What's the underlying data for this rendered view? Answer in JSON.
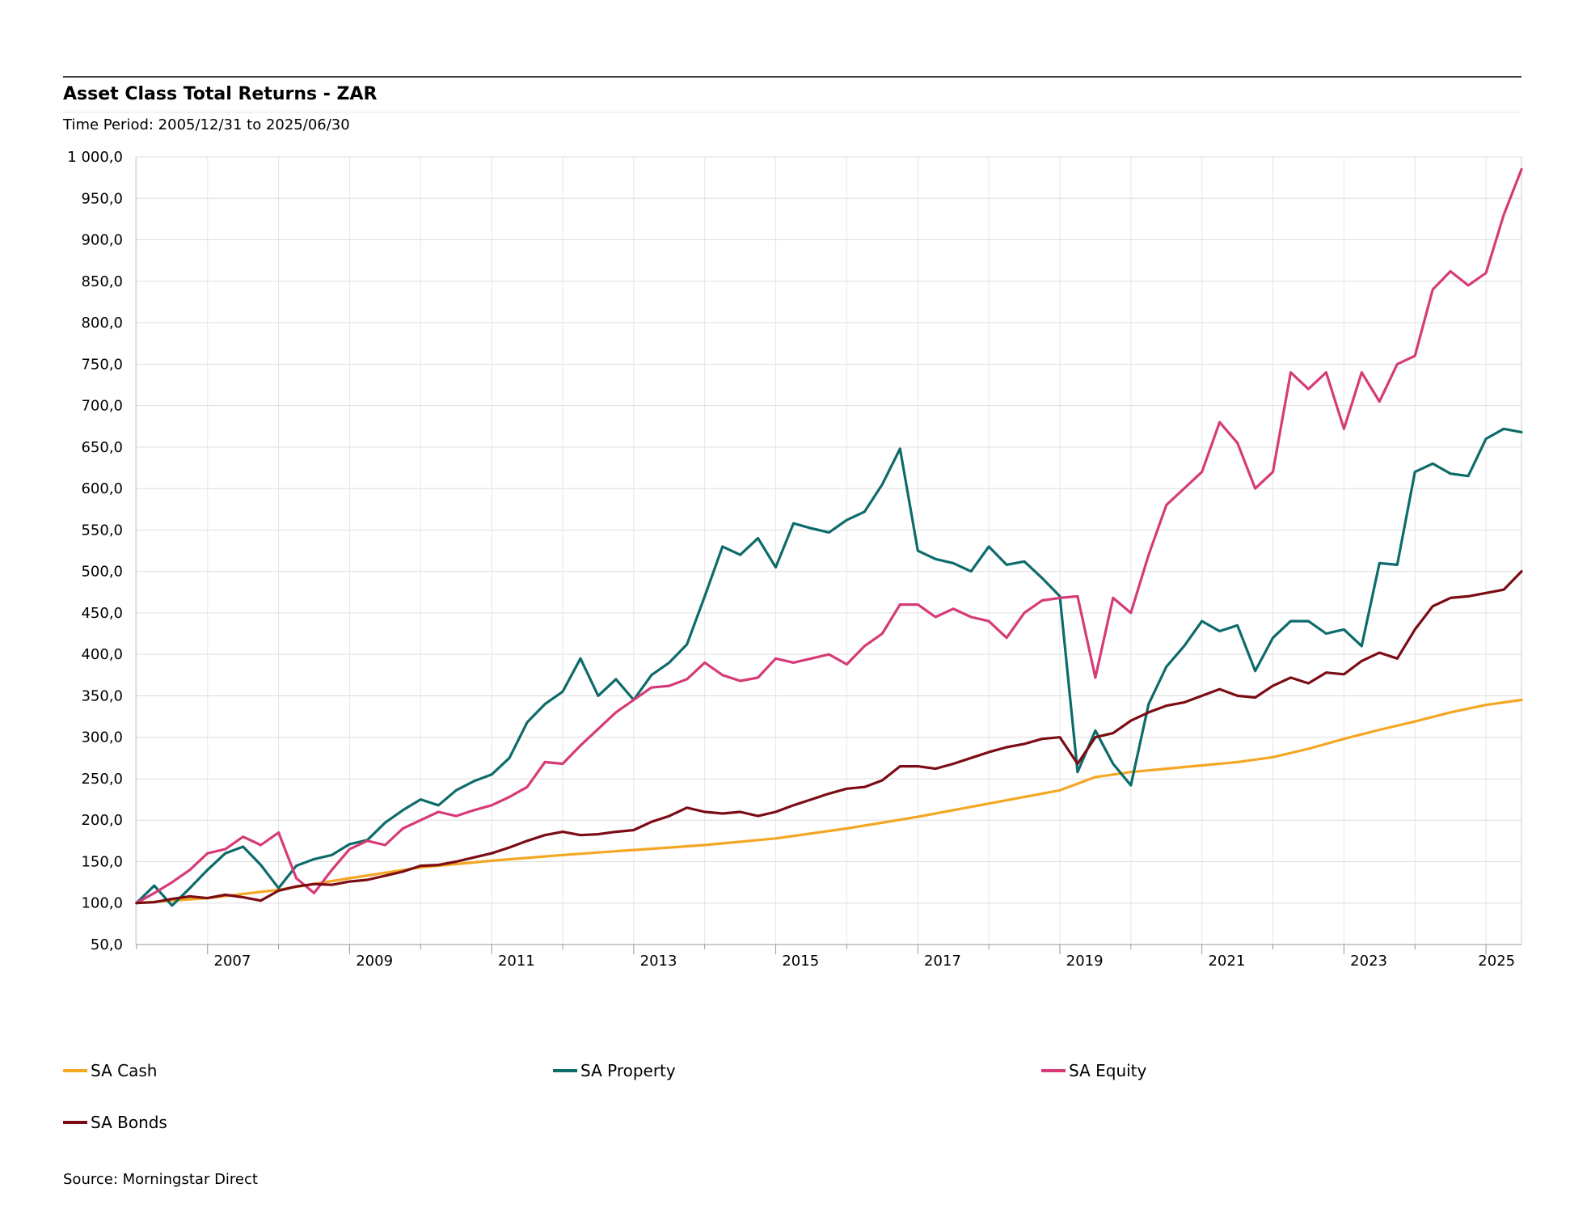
{
  "chart_data": {
    "type": "line",
    "title": "Asset Class Total Returns - ZAR",
    "subtitle": "Time Period: 2005/12/31 to 2025/06/30",
    "ylim": [
      50,
      1000
    ],
    "yticks": [
      "1 000,0",
      "950,0",
      "900,0",
      "850,0",
      "800,0",
      "750,0",
      "700,0",
      "650,0",
      "600,0",
      "550,0",
      "500,0",
      "450,0",
      "400,0",
      "350,0",
      "300,0",
      "250,0",
      "200,0",
      "150,0",
      "100,0",
      "50,0"
    ],
    "ytick_values": [
      1000,
      950,
      900,
      850,
      800,
      750,
      700,
      650,
      600,
      550,
      500,
      450,
      400,
      350,
      300,
      250,
      200,
      150,
      100,
      50
    ],
    "xlim": [
      2005.99,
      2025.5
    ],
    "xticks": [
      "2007",
      "2009",
      "2011",
      "2013",
      "2015",
      "2017",
      "2019",
      "2021",
      "2023",
      "2025"
    ],
    "xtick_values": [
      2007.6,
      2009.6,
      2011.6,
      2013.6,
      2015.6,
      2017.6,
      2019.6,
      2021.6,
      2023.6,
      2025.4
    ],
    "grid": true,
    "legend_position": "bottom",
    "series": [
      {
        "name": "SA Cash",
        "color": "#f5a623",
        "x": [
          2006.0,
          2007.0,
          2008.0,
          2009.0,
          2010.0,
          2011.0,
          2012.0,
          2013.0,
          2014.0,
          2015.0,
          2016.0,
          2017.0,
          2018.0,
          2019.0,
          2019.5,
          2020.0,
          2020.5,
          2021.0,
          2021.5,
          2022.0,
          2022.5,
          2023.0,
          2023.5,
          2024.0,
          2024.5,
          2025.0,
          2025.5
        ],
        "values": [
          100,
          106,
          116,
          130,
          143,
          151,
          158,
          164,
          170,
          178,
          190,
          204,
          220,
          236,
          252,
          258,
          262,
          266,
          270,
          276,
          286,
          298,
          309,
          319,
          330,
          339,
          345
        ]
      },
      {
        "name": "SA Property",
        "color": "#0e6b6b",
        "x": [
          2006.0,
          2006.25,
          2006.5,
          2006.75,
          2007.0,
          2007.25,
          2007.5,
          2007.75,
          2008.0,
          2008.25,
          2008.5,
          2008.75,
          2009.0,
          2009.25,
          2009.5,
          2009.75,
          2010.0,
          2010.25,
          2010.5,
          2010.75,
          2011.0,
          2011.25,
          2011.5,
          2011.75,
          2012.0,
          2012.25,
          2012.5,
          2012.75,
          2013.0,
          2013.25,
          2013.5,
          2013.75,
          2014.0,
          2014.25,
          2014.5,
          2014.75,
          2015.0,
          2015.25,
          2015.5,
          2015.75,
          2016.0,
          2016.25,
          2016.5,
          2016.75,
          2017.0,
          2017.25,
          2017.5,
          2017.75,
          2018.0,
          2018.25,
          2018.5,
          2018.75,
          2019.0,
          2019.25,
          2019.5,
          2019.75,
          2020.0,
          2020.25,
          2020.5,
          2020.75,
          2021.0,
          2021.25,
          2021.5,
          2021.75,
          2022.0,
          2022.25,
          2022.5,
          2022.75,
          2023.0,
          2023.25,
          2023.5,
          2023.75,
          2024.0,
          2024.25,
          2024.5,
          2024.75,
          2025.0,
          2025.25,
          2025.5
        ],
        "values": [
          100,
          121,
          97,
          118,
          140,
          160,
          168,
          146,
          118,
          145,
          153,
          158,
          171,
          176,
          197,
          212,
          225,
          218,
          236,
          247,
          255,
          275,
          318,
          340,
          355,
          395,
          350,
          370,
          345,
          375,
          390,
          412,
          470,
          530,
          520,
          540,
          505,
          558,
          552,
          547,
          562,
          572,
          605,
          648,
          525,
          515,
          510,
          500,
          530,
          508,
          512,
          492,
          470,
          258,
          308,
          268,
          242,
          340,
          385,
          410,
          440,
          428,
          435,
          380,
          420,
          440,
          440,
          425,
          430,
          410,
          510,
          508,
          620,
          630,
          618,
          615,
          660,
          672,
          668
        ]
      },
      {
        "name": "SA Equity",
        "color": "#d63b78",
        "x": [
          2006.0,
          2006.25,
          2006.5,
          2006.75,
          2007.0,
          2007.25,
          2007.5,
          2007.75,
          2008.0,
          2008.25,
          2008.5,
          2008.75,
          2009.0,
          2009.25,
          2009.5,
          2009.75,
          2010.0,
          2010.25,
          2010.5,
          2010.75,
          2011.0,
          2011.25,
          2011.5,
          2011.75,
          2012.0,
          2012.25,
          2012.5,
          2012.75,
          2013.0,
          2013.25,
          2013.5,
          2013.75,
          2014.0,
          2014.25,
          2014.5,
          2014.75,
          2015.0,
          2015.25,
          2015.5,
          2015.75,
          2016.0,
          2016.25,
          2016.5,
          2016.75,
          2017.0,
          2017.25,
          2017.5,
          2017.75,
          2018.0,
          2018.25,
          2018.5,
          2018.75,
          2019.0,
          2019.25,
          2019.5,
          2019.75,
          2020.0,
          2020.25,
          2020.5,
          2020.75,
          2021.0,
          2021.25,
          2021.5,
          2021.75,
          2022.0,
          2022.25,
          2022.5,
          2022.75,
          2023.0,
          2023.25,
          2023.5,
          2023.75,
          2024.0,
          2024.25,
          2024.5,
          2024.75,
          2025.0,
          2025.25,
          2025.5
        ],
        "values": [
          100,
          112,
          125,
          140,
          160,
          165,
          180,
          170,
          185,
          130,
          112,
          140,
          165,
          175,
          170,
          190,
          200,
          210,
          205,
          212,
          218,
          228,
          240,
          270,
          268,
          290,
          310,
          330,
          345,
          360,
          362,
          370,
          390,
          375,
          368,
          372,
          395,
          390,
          395,
          400,
          388,
          410,
          425,
          460,
          460,
          445,
          455,
          445,
          440,
          420,
          450,
          465,
          468,
          470,
          372,
          468,
          450,
          520,
          580,
          600,
          620,
          680,
          655,
          600,
          620,
          740,
          720,
          740,
          672,
          740,
          705,
          750,
          760,
          840,
          862,
          845,
          860,
          930,
          985
        ]
      },
      {
        "name": "SA Bonds",
        "color": "#7b0c14",
        "x": [
          2006.0,
          2006.25,
          2006.5,
          2006.75,
          2007.0,
          2007.25,
          2007.5,
          2007.75,
          2008.0,
          2008.25,
          2008.5,
          2008.75,
          2009.0,
          2009.25,
          2009.5,
          2009.75,
          2010.0,
          2010.25,
          2010.5,
          2010.75,
          2011.0,
          2011.25,
          2011.5,
          2011.75,
          2012.0,
          2012.25,
          2012.5,
          2012.75,
          2013.0,
          2013.25,
          2013.5,
          2013.75,
          2014.0,
          2014.25,
          2014.5,
          2014.75,
          2015.0,
          2015.25,
          2015.5,
          2015.75,
          2016.0,
          2016.25,
          2016.5,
          2016.75,
          2017.0,
          2017.25,
          2017.5,
          2017.75,
          2018.0,
          2018.25,
          2018.5,
          2018.75,
          2019.0,
          2019.25,
          2019.5,
          2019.75,
          2020.0,
          2020.25,
          2020.5,
          2020.75,
          2021.0,
          2021.25,
          2021.5,
          2021.75,
          2022.0,
          2022.25,
          2022.5,
          2022.75,
          2023.0,
          2023.25,
          2023.5,
          2023.75,
          2024.0,
          2024.25,
          2024.5,
          2024.75,
          2025.0,
          2025.25,
          2025.5
        ],
        "values": [
          100,
          101,
          105,
          108,
          106,
          110,
          107,
          103,
          115,
          120,
          123,
          122,
          126,
          128,
          133,
          138,
          145,
          146,
          150,
          155,
          160,
          167,
          175,
          182,
          186,
          182,
          183,
          186,
          188,
          198,
          205,
          215,
          210,
          208,
          210,
          205,
          210,
          218,
          225,
          232,
          238,
          240,
          248,
          265,
          265,
          262,
          268,
          275,
          282,
          288,
          292,
          298,
          300,
          268,
          300,
          305,
          320,
          330,
          338,
          342,
          350,
          358,
          350,
          348,
          362,
          372,
          365,
          378,
          376,
          392,
          402,
          395,
          430,
          458,
          468,
          470,
          474,
          478,
          500
        ]
      }
    ]
  },
  "legend": {
    "items": [
      {
        "label": "SA Cash",
        "color": "#f5a623"
      },
      {
        "label": "SA Property",
        "color": "#0e6b6b"
      },
      {
        "label": "SA Equity",
        "color": "#d63b78"
      },
      {
        "label": "SA Bonds",
        "color": "#7b0c14"
      }
    ]
  },
  "source": "Source: Morningstar Direct"
}
